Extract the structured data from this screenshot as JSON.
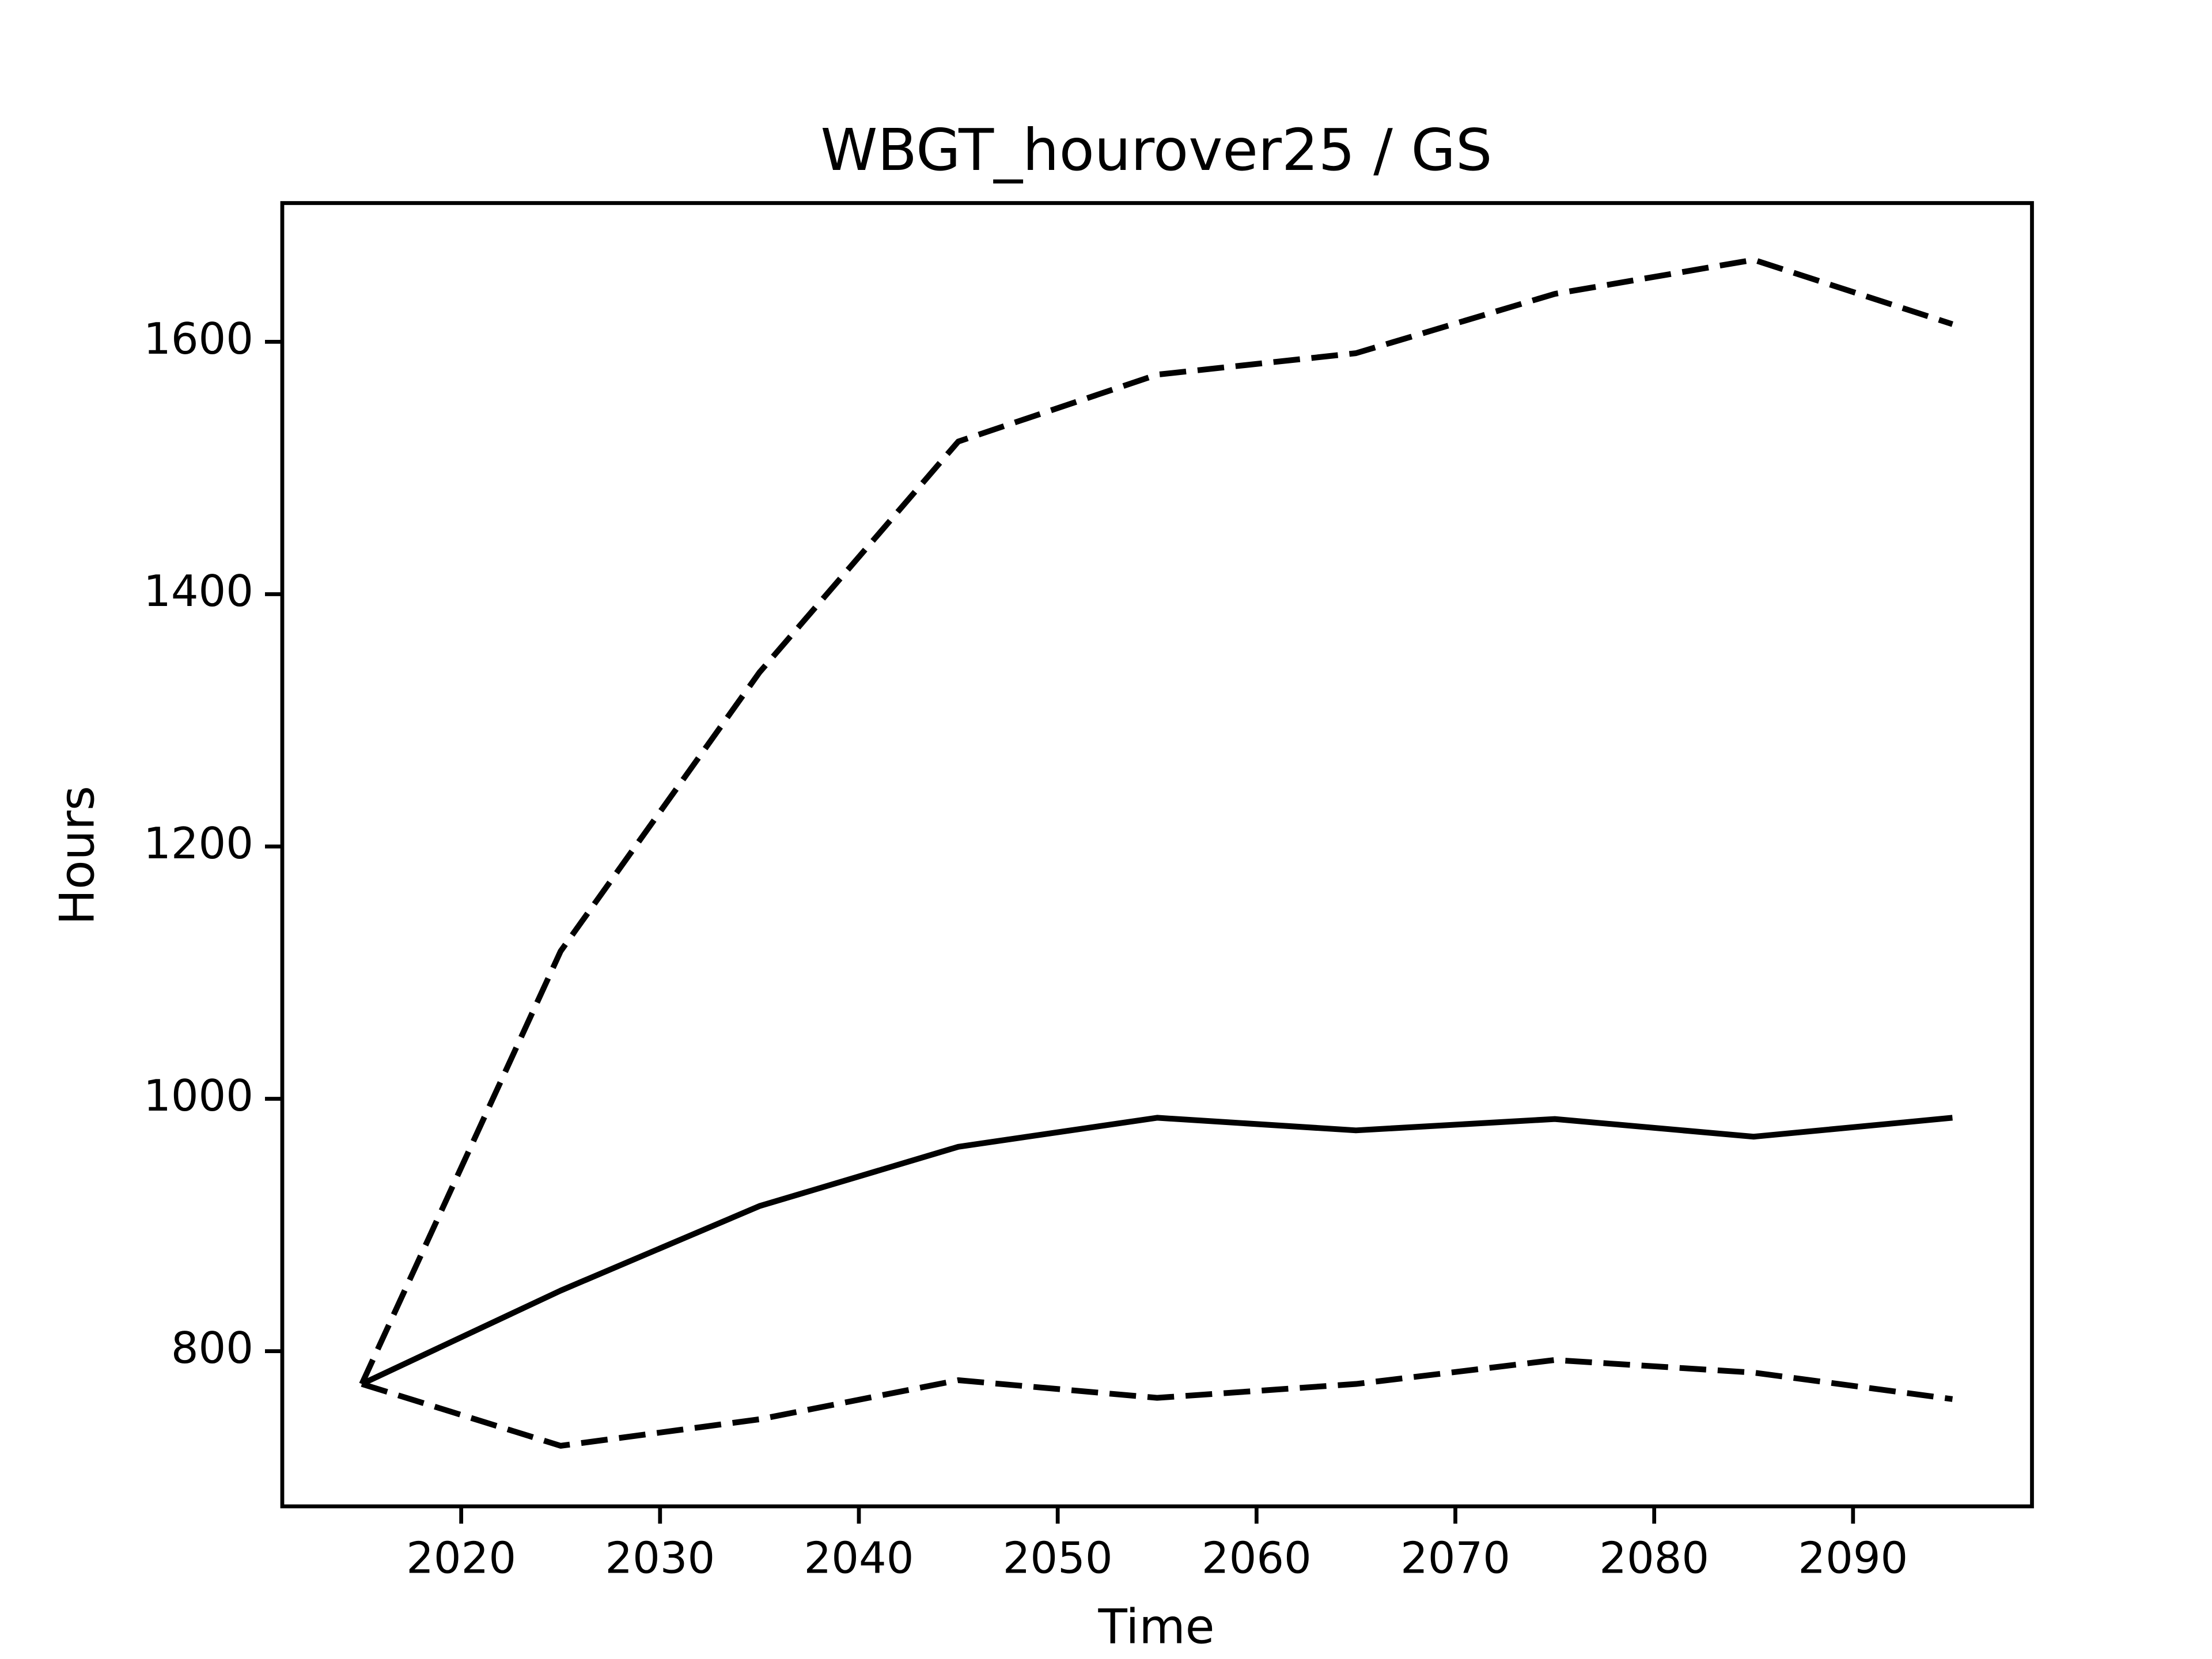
{
  "chart_data": {
    "type": "line",
    "title": "WBGT_hourover25 / GS",
    "x_label": "Time",
    "y_label": "Hours",
    "x": [
      2015,
      2025,
      2035,
      2045,
      2055,
      2065,
      2075,
      2085,
      2095
    ],
    "series": [
      {
        "color": "#000000",
        "style": "solid",
        "values": [
          774,
          848,
          915,
          962,
          985,
          975,
          984,
          970,
          985
        ]
      },
      {
        "color": "#000000",
        "style": "dashed",
        "values": [
          774,
          1117,
          1338,
          1521,
          1574,
          1591,
          1638,
          1665,
          1614
        ]
      },
      {
        "color": "#000000",
        "style": "dashed",
        "values": [
          774,
          725,
          746,
          777,
          763,
          774,
          793,
          783,
          762
        ]
      }
    ],
    "xlim": [
      2011,
      2099
    ],
    "xticks": [
      2020,
      2030,
      2040,
      2050,
      2060,
      2070,
      2080,
      2090
    ],
    "ylim": [
      677,
      1710
    ],
    "yticks": [
      800,
      1000,
      1200,
      1400,
      1600
    ],
    "grid": false
  }
}
